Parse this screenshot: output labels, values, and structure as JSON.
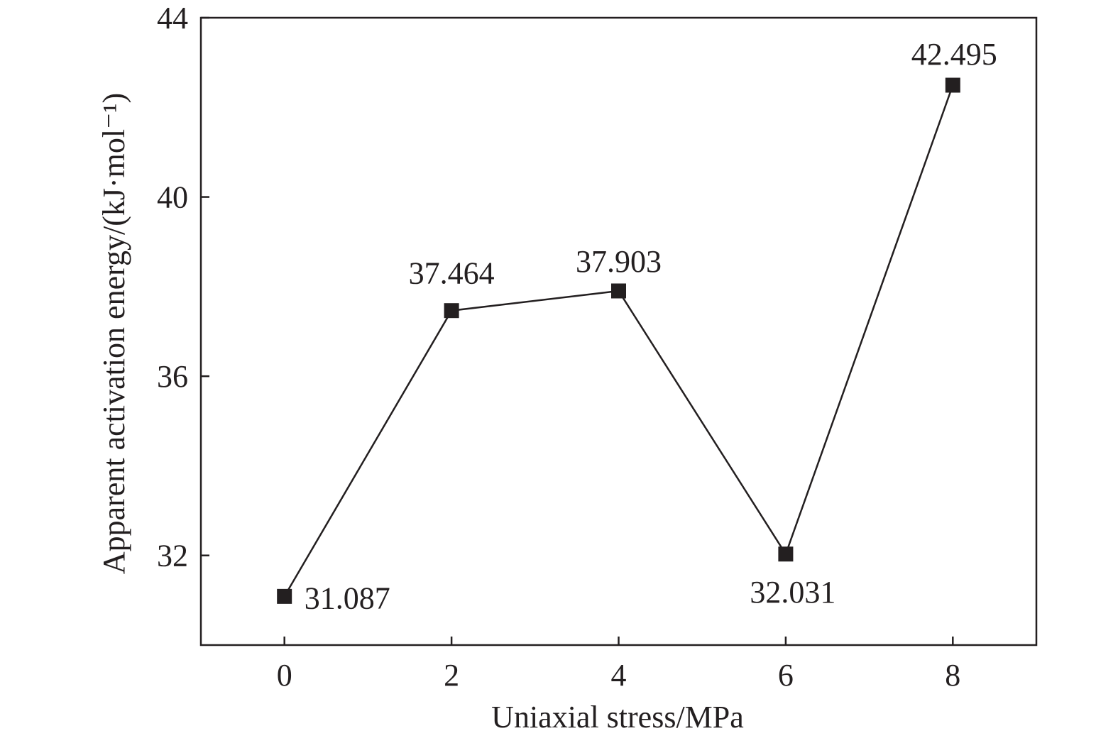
{
  "chart_data": {
    "type": "line",
    "x": [
      0,
      2,
      4,
      6,
      8
    ],
    "series": [
      {
        "values": [
          31.087,
          37.464,
          37.903,
          32.031,
          42.495
        ],
        "data_labels": [
          "31.087",
          "37.464",
          "37.903",
          "32.031",
          "42.495"
        ],
        "marker": "square",
        "color": "#231f20"
      }
    ],
    "xlabel": "Uniaxial stress/MPa",
    "ylabel": "Apparent activation energy/(kJ·mol⁻¹)",
    "xlim": [
      -1,
      9
    ],
    "ylim": [
      30,
      44
    ],
    "xticks": [
      0,
      2,
      4,
      6,
      8
    ],
    "xtick_labels": [
      "0",
      "2",
      "4",
      "6",
      "8"
    ],
    "yticks": [
      32,
      36,
      40,
      44
    ],
    "ytick_labels": [
      "32",
      "36",
      "40",
      "44"
    ],
    "grid": false,
    "legend": "none"
  }
}
